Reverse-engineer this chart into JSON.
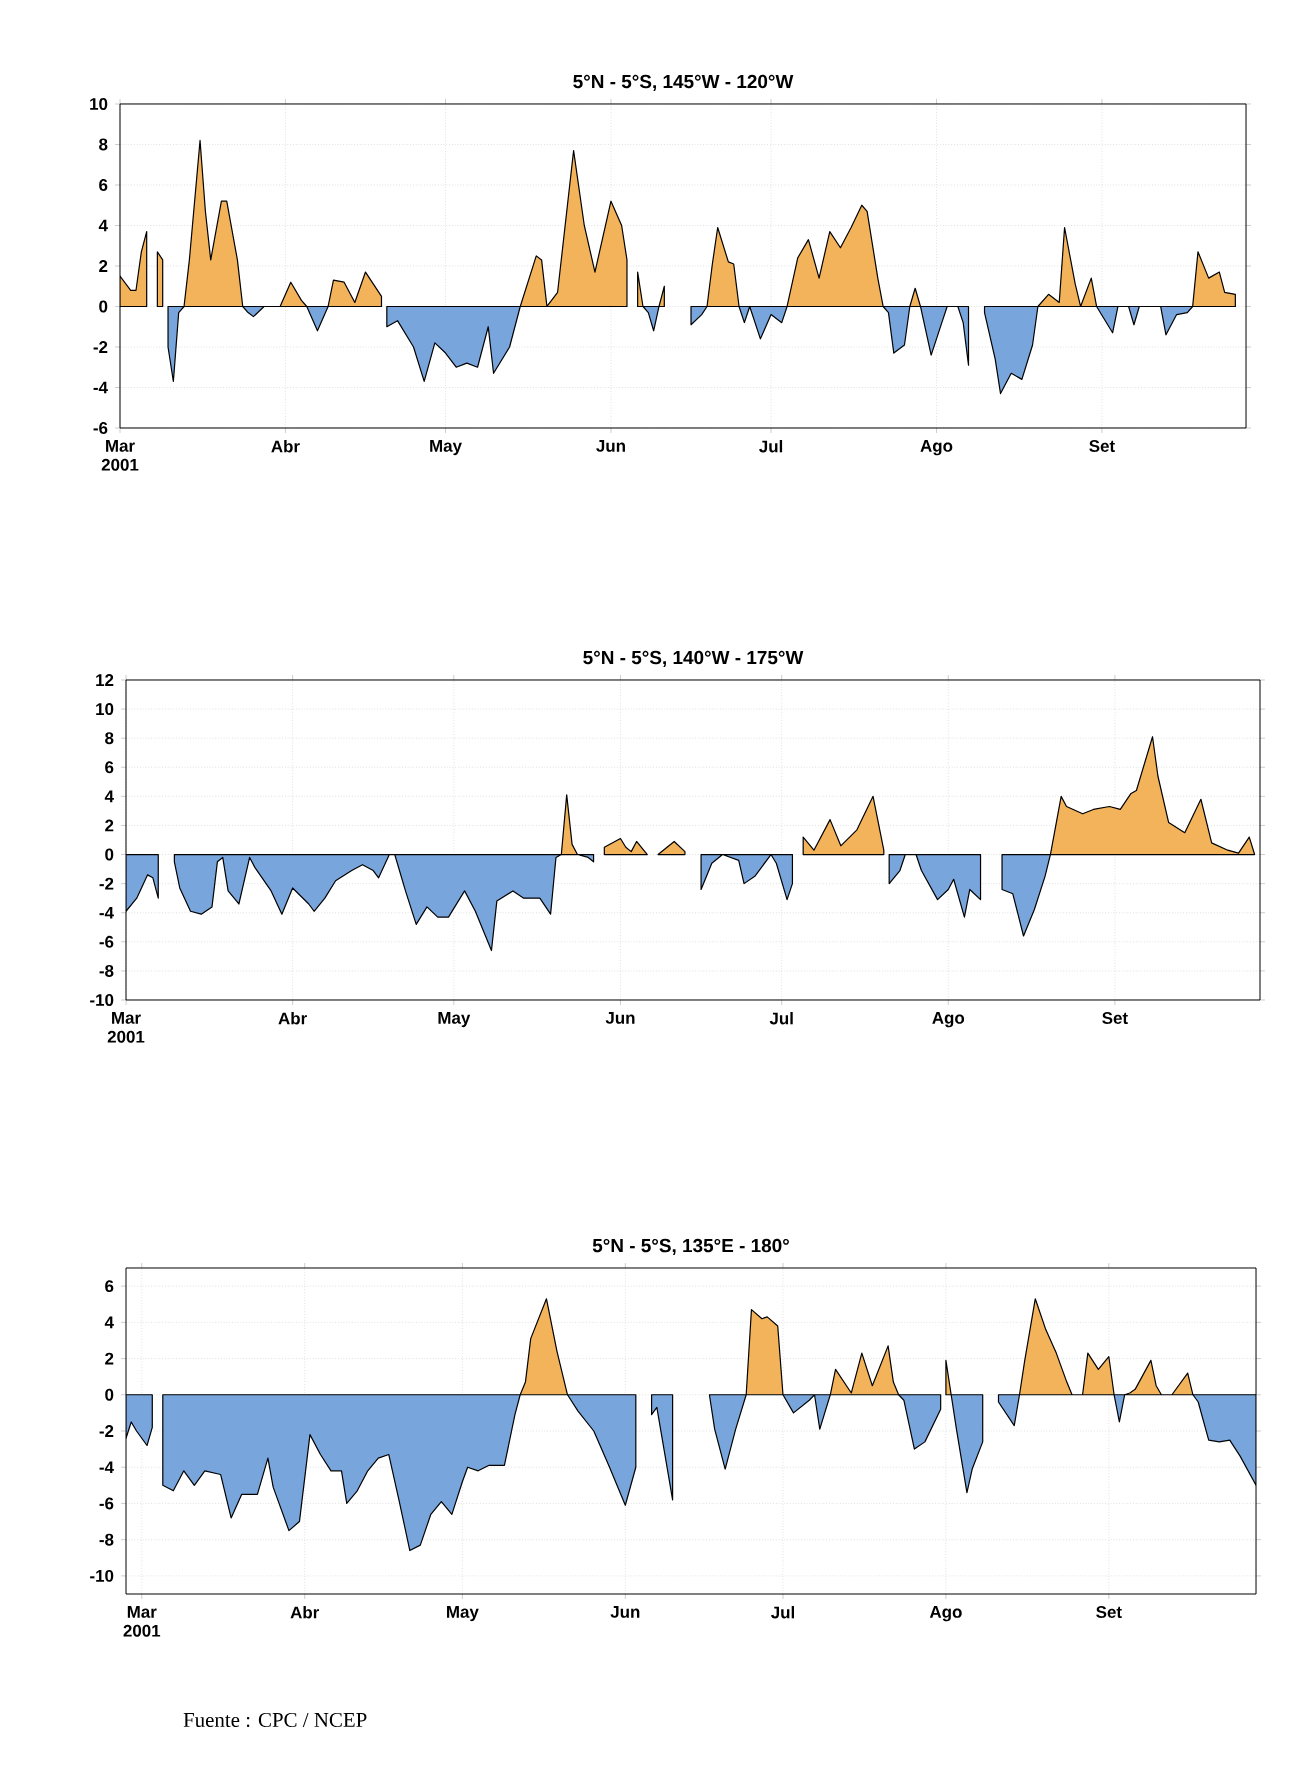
{
  "chart_data": [
    {
      "type": "area",
      "title": "5°N - 5°S, 145°W - 120°W",
      "xlim": [
        "2001-03-01",
        "2001-09-28"
      ],
      "ylim": [
        -6,
        10
      ],
      "grid": true,
      "xticks": [
        {
          "value": "2001-03-01",
          "label": "Mar 2001"
        },
        {
          "value": "2001-04-01",
          "label": "Abr"
        },
        {
          "value": "2001-05-01",
          "label": "May"
        },
        {
          "value": "2001-06-01",
          "label": "Jun"
        },
        {
          "value": "2001-07-01",
          "label": "Jul"
        },
        {
          "value": "2001-08-01",
          "label": "Ago"
        },
        {
          "value": "2001-09-01",
          "label": "Set"
        }
      ],
      "yticks": [
        -6,
        -4,
        -2,
        0,
        2,
        4,
        6,
        8,
        10
      ],
      "series": [
        {
          "color": "#f3b35a",
          "x": [
            "2001-03-01",
            "2001-03-03",
            "2001-03-04",
            "2001-03-05",
            "2001-03-06",
            "2001-03-07",
            "2001-03-08",
            "2001-03-09",
            "2001-03-10",
            "2001-03-13",
            "2001-03-14",
            "2001-03-16",
            "2001-03-17",
            "2001-03-18",
            "2001-03-20",
            "2001-03-21",
            "2001-03-23",
            "2001-03-24",
            "2001-03-25",
            "2001-03-28",
            "2001-03-31",
            "2001-04-02",
            "2001-04-04",
            "2001-04-05",
            "2001-04-06",
            "2001-04-09",
            "2001-04-10",
            "2001-04-12",
            "2001-04-14",
            "2001-04-16",
            "2001-04-19",
            "2001-04-20",
            "2001-05-15",
            "2001-05-18",
            "2001-05-19",
            "2001-05-20",
            "2001-05-22",
            "2001-05-25",
            "2001-05-27",
            "2001-05-29",
            "2001-06-01",
            "2001-06-03",
            "2001-06-04",
            "2001-06-05",
            "2001-06-06",
            "2001-06-07",
            "2001-06-08",
            "2001-06-10",
            "2001-06-11",
            "2001-06-12",
            "2001-06-19",
            "2001-06-20",
            "2001-06-21",
            "2001-06-23",
            "2001-06-24",
            "2001-06-25",
            "2001-06-26",
            "2001-07-04",
            "2001-07-06",
            "2001-07-08",
            "2001-07-10",
            "2001-07-12",
            "2001-07-14",
            "2001-07-16",
            "2001-07-18",
            "2001-07-19",
            "2001-07-21",
            "2001-07-22",
            "2001-07-23",
            "2001-07-27",
            "2001-07-28",
            "2001-07-29",
            "2001-07-30",
            "2001-08-20",
            "2001-08-22",
            "2001-08-24",
            "2001-08-25",
            "2001-08-27",
            "2001-08-28",
            "2001-08-30",
            "2001-08-31",
            "2001-09-01",
            "2001-09-18",
            "2001-09-19",
            "2001-09-21",
            "2001-09-23",
            "2001-09-24",
            "2001-09-26"
          ],
          "values": [
            1.5,
            0.8,
            0.8,
            2.7,
            3.7,
            null,
            2.7,
            2.3,
            null,
            0,
            2.3,
            8.2,
            4.7,
            2.3,
            5.2,
            5.2,
            2.3,
            0,
            null,
            0,
            0,
            1.2,
            0.3,
            0,
            null,
            0,
            1.3,
            1.2,
            0.2,
            1.7,
            0.5,
            null,
            0,
            2.5,
            2.3,
            0,
            0.7,
            7.7,
            4,
            1.7,
            5.2,
            4,
            2.3,
            null,
            1.7,
            0,
            null,
            0,
            1.0,
            null,
            0,
            2.1,
            3.9,
            2.2,
            2.1,
            0,
            null,
            0,
            2.4,
            3.3,
            1.4,
            3.7,
            2.9,
            3.9,
            5.0,
            4.7,
            1.4,
            0,
            null,
            0,
            0.9,
            0,
            null,
            0,
            0.6,
            0.2,
            3.9,
            1.1,
            0,
            1.4,
            0,
            null,
            0,
            2.7,
            1.4,
            1.7,
            0.7,
            0.6
          ]
        },
        {
          "color": "#78a6dc",
          "x": [
            "2001-03-10",
            "2001-03-11",
            "2001-03-12",
            "2001-03-13",
            "2001-03-14",
            "2001-03-24",
            "2001-03-25",
            "2001-03-26",
            "2001-03-28",
            "2001-03-29",
            "2001-04-05",
            "2001-04-07",
            "2001-04-09",
            "2001-04-10",
            "2001-04-20",
            "2001-04-22",
            "2001-04-25",
            "2001-04-27",
            "2001-04-29",
            "2001-05-01",
            "2001-05-03",
            "2001-05-05",
            "2001-05-07",
            "2001-05-09",
            "2001-05-10",
            "2001-05-13",
            "2001-05-15",
            "2001-05-16",
            "2001-06-07",
            "2001-06-08",
            "2001-06-09",
            "2001-06-10",
            "2001-06-11",
            "2001-06-16",
            "2001-06-18",
            "2001-06-19",
            "2001-06-20",
            "2001-06-25",
            "2001-06-26",
            "2001-06-27",
            "2001-06-29",
            "2001-07-01",
            "2001-07-03",
            "2001-07-04",
            "2001-07-05",
            "2001-07-22",
            "2001-07-23",
            "2001-07-24",
            "2001-07-26",
            "2001-07-27",
            "2001-07-28",
            "2001-07-29",
            "2001-07-31",
            "2001-08-02",
            "2001-08-03",
            "2001-08-05",
            "2001-08-06",
            "2001-08-07",
            "2001-08-08",
            "2001-08-10",
            "2001-08-12",
            "2001-08-13",
            "2001-08-15",
            "2001-08-17",
            "2001-08-19",
            "2001-08-20",
            "2001-08-21",
            "2001-08-31",
            "2001-09-03",
            "2001-09-04",
            "2001-09-06",
            "2001-09-07",
            "2001-09-08",
            "2001-09-12",
            "2001-09-13",
            "2001-09-15",
            "2001-09-17",
            "2001-09-18"
          ],
          "values": [
            -2,
            -3.7,
            -0.3,
            0,
            null,
            0,
            -0.3,
            -0.5,
            0,
            null,
            0,
            -1.2,
            0,
            null,
            -1,
            -0.7,
            -2,
            -3.7,
            -1.8,
            -2.3,
            -3,
            -2.8,
            -3,
            -1,
            -3.3,
            -2,
            0,
            null,
            0,
            -0.3,
            -1.2,
            0,
            null,
            -0.9,
            -0.4,
            0,
            null,
            0,
            -0.8,
            0,
            -1.6,
            -0.4,
            -0.8,
            0,
            null,
            0,
            -0.3,
            -2.3,
            -1.9,
            0,
            null,
            0,
            -2.4,
            -0.8,
            0,
            0,
            -0.8,
            -2.9,
            null,
            -0.3,
            -2.6,
            -4.3,
            -3.3,
            -3.6,
            -1.9,
            0,
            null,
            0,
            -1.3,
            0,
            0,
            -0.9,
            0,
            0,
            -1.4,
            -0.4,
            -0.3,
            0
          ]
        }
      ]
    },
    {
      "type": "area",
      "title": "5°N - 5°S, 140°W - 175°W",
      "xlim": [
        "2001-03-01",
        "2001-09-28"
      ],
      "ylim": [
        -10,
        12
      ],
      "grid": true,
      "xticks": [
        {
          "value": "2001-03-01",
          "label": "Mar 2001"
        },
        {
          "value": "2001-04-01",
          "label": "Abr"
        },
        {
          "value": "2001-05-01",
          "label": "May"
        },
        {
          "value": "2001-06-01",
          "label": "Jun"
        },
        {
          "value": "2001-07-01",
          "label": "Jul"
        },
        {
          "value": "2001-08-01",
          "label": "Ago"
        },
        {
          "value": "2001-09-01",
          "label": "Set"
        }
      ],
      "yticks": [
        -10,
        -8,
        -6,
        -4,
        -2,
        0,
        2,
        4,
        6,
        8,
        10,
        12
      ],
      "series": [
        {
          "color": "#f3b35a",
          "x": [
            "2001-05-21",
            "2001-05-22",
            "2001-05-23",
            "2001-05-24",
            "2001-05-25",
            "2001-05-29",
            "2001-06-01",
            "2001-06-02",
            "2001-06-03",
            "2001-06-04",
            "2001-06-06",
            "2001-06-07",
            "2001-06-08",
            "2001-06-11",
            "2001-06-13",
            "2001-06-14",
            "2001-07-05",
            "2001-07-07",
            "2001-07-10",
            "2001-07-12",
            "2001-07-15",
            "2001-07-18",
            "2001-07-20",
            "2001-07-21",
            "2001-08-20",
            "2001-08-22",
            "2001-08-23",
            "2001-08-26",
            "2001-08-28",
            "2001-08-31",
            "2001-09-02",
            "2001-09-04",
            "2001-09-05",
            "2001-09-08",
            "2001-09-09",
            "2001-09-11",
            "2001-09-14",
            "2001-09-17",
            "2001-09-19",
            "2001-09-22",
            "2001-09-24",
            "2001-09-26",
            "2001-09-27"
          ],
          "values": [
            0,
            4.1,
            0.7,
            0,
            null,
            0.5,
            1.1,
            0.5,
            0.2,
            0.9,
            0,
            null,
            0,
            0.9,
            0.2,
            null,
            1.2,
            0.3,
            2.4,
            0.6,
            1.7,
            4.0,
            0.3,
            null,
            0,
            4.0,
            3.3,
            2.8,
            3.1,
            3.3,
            3.1,
            4.2,
            4.4,
            8.1,
            5.4,
            2.2,
            1.5,
            3.8,
            0.8,
            0.3,
            0.1,
            1.2,
            0
          ]
        },
        {
          "color": "#78a6dc",
          "x": [
            "2001-03-01",
            "2001-03-03",
            "2001-03-05",
            "2001-03-06",
            "2001-03-07",
            "2001-03-08",
            "2001-03-10",
            "2001-03-11",
            "2001-03-13",
            "2001-03-15",
            "2001-03-17",
            "2001-03-18",
            "2001-03-19",
            "2001-03-20",
            "2001-03-22",
            "2001-03-24",
            "2001-03-25",
            "2001-03-28",
            "2001-03-30",
            "2001-04-01",
            "2001-04-04",
            "2001-04-05",
            "2001-04-07",
            "2001-04-09",
            "2001-04-12",
            "2001-04-14",
            "2001-04-16",
            "2001-04-17",
            "2001-04-19",
            "2001-04-20",
            "2001-04-22",
            "2001-04-24",
            "2001-04-26",
            "2001-04-28",
            "2001-04-30",
            "2001-05-03",
            "2001-05-05",
            "2001-05-08",
            "2001-05-09",
            "2001-05-12",
            "2001-05-14",
            "2001-05-17",
            "2001-05-19",
            "2001-05-20",
            "2001-05-21",
            "2001-05-22",
            "2001-05-24",
            "2001-05-26",
            "2001-05-27",
            "2001-05-28",
            "2001-06-16",
            "2001-06-18",
            "2001-06-20",
            "2001-06-23",
            "2001-06-24",
            "2001-06-26",
            "2001-06-29",
            "2001-06-30",
            "2001-07-02",
            "2001-07-03",
            "2001-07-04",
            "2001-07-21",
            "2001-07-23",
            "2001-07-24",
            "2001-07-26",
            "2001-07-27",
            "2001-07-30",
            "2001-08-01",
            "2001-08-02",
            "2001-08-04",
            "2001-08-05",
            "2001-08-07",
            "2001-08-08",
            "2001-08-11",
            "2001-08-13",
            "2001-08-15",
            "2001-08-17",
            "2001-08-19",
            "2001-08-20"
          ],
          "values": [
            -3.9,
            -3.0,
            -1.4,
            -1.6,
            -3.0,
            null,
            -0.5,
            -2.3,
            -3.9,
            -4.1,
            -3.6,
            -0.5,
            -0.2,
            -2.5,
            -3.4,
            -0.2,
            -0.9,
            -2.5,
            -4.1,
            -2.3,
            -3.4,
            -3.9,
            -3.0,
            -1.8,
            -1.1,
            -0.7,
            -1.1,
            -1.6,
            0,
            0,
            -2.5,
            -4.8,
            -3.6,
            -4.3,
            -4.3,
            -2.5,
            -3.9,
            -6.6,
            -3.2,
            -2.5,
            -3.0,
            -3.0,
            -4.1,
            -0.2,
            0,
            null,
            0,
            -0.2,
            -0.5,
            null,
            -2.4,
            -0.6,
            0,
            -0.4,
            -2.0,
            -1.5,
            0,
            -0.6,
            -3.1,
            -2.0,
            null,
            -2.0,
            -1.1,
            0,
            0,
            -1.1,
            -3.1,
            -2.4,
            -1.7,
            -4.3,
            -2.4,
            -3.1,
            null,
            -2.4,
            -2.7,
            -5.6,
            -3.8,
            -1.5,
            0
          ]
        }
      ]
    },
    {
      "type": "area",
      "title": "5°N - 5°S, 135°E - 180°",
      "xlim": [
        "2001-02-26",
        "2001-09-29"
      ],
      "ylim": [
        -11,
        7
      ],
      "grid": true,
      "xticks": [
        {
          "value": "2001-03-01",
          "label": "Mar 2001"
        },
        {
          "value": "2001-04-01",
          "label": "Abr"
        },
        {
          "value": "2001-05-01",
          "label": "May"
        },
        {
          "value": "2001-06-01",
          "label": "Jun"
        },
        {
          "value": "2001-07-01",
          "label": "Jul"
        },
        {
          "value": "2001-08-01",
          "label": "Ago"
        },
        {
          "value": "2001-09-01",
          "label": "Set"
        }
      ],
      "yticks": [
        -10,
        -8,
        -6,
        -4,
        -2,
        0,
        2,
        4,
        6
      ],
      "annotations": [
        "Fuente : CPC / NCEP"
      ],
      "series": [
        {
          "color": "#f3b35a",
          "x": [
            "2001-05-12",
            "2001-05-13",
            "2001-05-14",
            "2001-05-17",
            "2001-05-19",
            "2001-05-21",
            "2001-05-22",
            "2001-06-24",
            "2001-06-25",
            "2001-06-27",
            "2001-06-28",
            "2001-06-30",
            "2001-07-01",
            "2001-07-02",
            "2001-07-10",
            "2001-07-11",
            "2001-07-14",
            "2001-07-16",
            "2001-07-18",
            "2001-07-21",
            "2001-07-22",
            "2001-07-23",
            "2001-07-24",
            "2001-08-01",
            "2001-08-02",
            "2001-08-03",
            "2001-08-15",
            "2001-08-16",
            "2001-08-18",
            "2001-08-20",
            "2001-08-22",
            "2001-08-24",
            "2001-08-25",
            "2001-08-27",
            "2001-08-28",
            "2001-08-30",
            "2001-09-01",
            "2001-09-02",
            "2001-09-03",
            "2001-09-04",
            "2001-09-05",
            "2001-09-06",
            "2001-09-09",
            "2001-09-10",
            "2001-09-11",
            "2001-09-13",
            "2001-09-16",
            "2001-09-17"
          ],
          "values": [
            0,
            0.7,
            3.1,
            5.3,
            2.4,
            0,
            null,
            0,
            4.7,
            4.2,
            4.3,
            3.8,
            0,
            null,
            0,
            1.4,
            0.1,
            2.3,
            0.5,
            2.7,
            0.7,
            0,
            null,
            1.9,
            0,
            null,
            0,
            1.9,
            5.3,
            3.6,
            2.3,
            0.7,
            0,
            0,
            2.3,
            1.4,
            2.1,
            0,
            null,
            0,
            0.1,
            0.3,
            1.9,
            0.5,
            0,
            0,
            1.2,
            0
          ]
        },
        {
          "color": "#78a6dc",
          "x": [
            "2001-02-26",
            "2001-02-27",
            "2001-02-28",
            "2001-03-02",
            "2001-03-03",
            "2001-03-04",
            "2001-03-05",
            "2001-03-07",
            "2001-03-09",
            "2001-03-11",
            "2001-03-13",
            "2001-03-16",
            "2001-03-18",
            "2001-03-20",
            "2001-03-23",
            "2001-03-25",
            "2001-03-26",
            "2001-03-29",
            "2001-03-31",
            "2001-04-02",
            "2001-04-04",
            "2001-04-06",
            "2001-04-08",
            "2001-04-09",
            "2001-04-11",
            "2001-04-13",
            "2001-04-15",
            "2001-04-17",
            "2001-04-19",
            "2001-04-21",
            "2001-04-23",
            "2001-04-25",
            "2001-04-27",
            "2001-04-29",
            "2001-05-01",
            "2001-05-02",
            "2001-05-04",
            "2001-05-06",
            "2001-05-09",
            "2001-05-11",
            "2001-05-12",
            "2001-05-13",
            "2001-05-21",
            "2001-05-23",
            "2001-05-26",
            "2001-05-29",
            "2001-06-01",
            "2001-06-03",
            "2001-06-04",
            "2001-06-06",
            "2001-06-07",
            "2001-06-10",
            "2001-06-11",
            "2001-06-17",
            "2001-06-18",
            "2001-06-20",
            "2001-06-22",
            "2001-06-24",
            "2001-06-25",
            "2001-07-01",
            "2001-07-03",
            "2001-07-06",
            "2001-07-07",
            "2001-07-08",
            "2001-07-10",
            "2001-07-11",
            "2001-07-23",
            "2001-07-24",
            "2001-07-26",
            "2001-07-28",
            "2001-07-31",
            "2001-08-01",
            "2001-08-02",
            "2001-08-03",
            "2001-08-05",
            "2001-08-06",
            "2001-08-08",
            "2001-08-09",
            "2001-08-11",
            "2001-08-14",
            "2001-08-15",
            "2001-08-16",
            "2001-09-02",
            "2001-09-03",
            "2001-09-04",
            "2001-09-05",
            "2001-09-17",
            "2001-09-18",
            "2001-09-20",
            "2001-09-22",
            "2001-09-24",
            "2001-09-26",
            "2001-09-29"
          ],
          "values": [
            -2.4,
            -1.5,
            -2.0,
            -2.8,
            -1.8,
            null,
            -5.0,
            -5.3,
            -4.2,
            -5.0,
            -4.2,
            -4.4,
            -6.8,
            -5.5,
            -5.5,
            -3.5,
            -5.1,
            -7.5,
            -7.0,
            -2.2,
            -3.3,
            -4.2,
            -4.2,
            -6.0,
            -5.3,
            -4.2,
            -3.5,
            -3.3,
            -5.9,
            -8.6,
            -8.3,
            -6.6,
            -5.9,
            -6.6,
            -4.8,
            -4.0,
            -4.2,
            -3.9,
            -3.9,
            -1.1,
            0,
            null,
            0,
            -0.9,
            -2.0,
            -4.0,
            -6.1,
            -4.0,
            null,
            -1.1,
            -0.7,
            -5.8,
            null,
            0,
            -1.9,
            -4.1,
            -1.9,
            0,
            null,
            0,
            -1.0,
            -0.3,
            0,
            -1.9,
            0,
            null,
            0,
            -0.3,
            -3.0,
            -2.6,
            -0.8,
            null,
            0,
            -1.9,
            -5.4,
            -4.1,
            -2.6,
            null,
            -0.4,
            -1.7,
            0,
            null,
            0,
            -1.5,
            0,
            null,
            0,
            -0.4,
            -2.5,
            -2.6,
            -2.5,
            -3.4,
            -5.0
          ]
        }
      ]
    }
  ]
}
